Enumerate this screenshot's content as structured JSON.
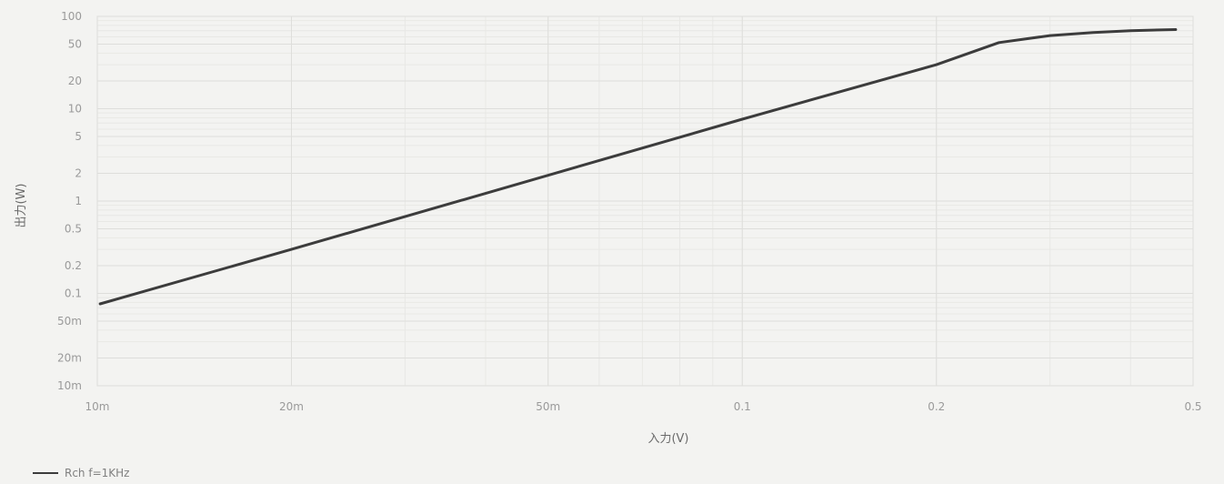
{
  "chart_data": {
    "type": "line",
    "title": "",
    "xlabel": "入力(V)",
    "ylabel": "出力(W)",
    "x_scale": "log",
    "y_scale": "log",
    "xlim": [
      0.01,
      0.5
    ],
    "ylim": [
      0.01,
      100
    ],
    "x_ticks": [
      {
        "value": 0.01,
        "label": "10m"
      },
      {
        "value": 0.02,
        "label": "20m"
      },
      {
        "value": 0.05,
        "label": "50m"
      },
      {
        "value": 0.1,
        "label": "0.1"
      },
      {
        "value": 0.2,
        "label": "0.2"
      },
      {
        "value": 0.5,
        "label": "0.5"
      }
    ],
    "y_ticks": [
      {
        "value": 100,
        "label": "100"
      },
      {
        "value": 50,
        "label": "50"
      },
      {
        "value": 20,
        "label": "20"
      },
      {
        "value": 10,
        "label": "10"
      },
      {
        "value": 5,
        "label": "5"
      },
      {
        "value": 2,
        "label": "2"
      },
      {
        "value": 1,
        "label": "1"
      },
      {
        "value": 0.5,
        "label": "0.5"
      },
      {
        "value": 0.2,
        "label": "0.2"
      },
      {
        "value": 0.1,
        "label": "0.1"
      },
      {
        "value": 0.05,
        "label": "50m"
      },
      {
        "value": 0.02,
        "label": "20m"
      },
      {
        "value": 0.01,
        "label": "10m"
      }
    ],
    "grid": true,
    "legend_position": "bottom-left",
    "series": [
      {
        "name": "Rch f=1KHz",
        "color": "#3c3c3c",
        "x": [
          0.0101,
          0.02,
          0.05,
          0.1,
          0.2,
          0.25,
          0.3,
          0.35,
          0.4,
          0.47
        ],
        "y": [
          0.077,
          0.3,
          1.9,
          7.7,
          30,
          52,
          62,
          67,
          70,
          72
        ]
      }
    ]
  }
}
